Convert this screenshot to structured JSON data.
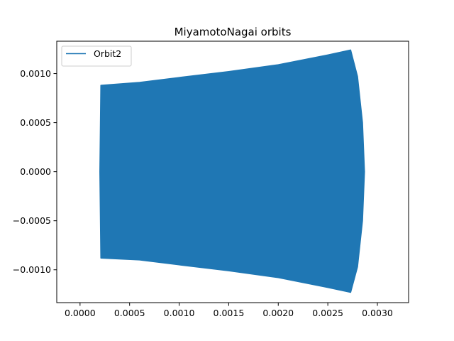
{
  "chart_data": {
    "type": "area",
    "title": "MiyamotoNagai orbits",
    "xlabel": "",
    "ylabel": "",
    "xlim": [
      -0.000235,
      0.003315
    ],
    "ylim": [
      -0.001335,
      0.00133
    ],
    "xticks": [
      {
        "value": 0.0,
        "label": "0.0000"
      },
      {
        "value": 0.0005,
        "label": "0.0005"
      },
      {
        "value": 0.001,
        "label": "0.0010"
      },
      {
        "value": 0.0015,
        "label": "0.0015"
      },
      {
        "value": 0.002,
        "label": "0.0020"
      },
      {
        "value": 0.0025,
        "label": "0.0025"
      },
      {
        "value": 0.003,
        "label": "0.0030"
      }
    ],
    "yticks": [
      {
        "value": -0.001,
        "label": "−0.0010"
      },
      {
        "value": -0.0005,
        "label": "−0.0005"
      },
      {
        "value": 0.0,
        "label": "0.0000"
      },
      {
        "value": 0.0005,
        "label": "0.0005"
      },
      {
        "value": 0.001,
        "label": "0.0010"
      }
    ],
    "grid": false,
    "legend_position": "upper left",
    "series": [
      {
        "name": "Orbit2",
        "color": "#1f77b4",
        "outline": [
          [
            0.00021,
            0.00088
          ],
          [
            0.0006,
            0.00091
          ],
          [
            0.001,
            0.00096
          ],
          [
            0.0015,
            0.00102
          ],
          [
            0.002,
            0.00109
          ],
          [
            0.0025,
            0.00119
          ],
          [
            0.00273,
            0.00124
          ],
          [
            0.0028,
            0.00097
          ],
          [
            0.00285,
            0.0005
          ],
          [
            0.00287,
            0.0
          ],
          [
            0.00285,
            -0.0005
          ],
          [
            0.0028,
            -0.00097
          ],
          [
            0.00273,
            -0.00123
          ],
          [
            0.0025,
            -0.00118
          ],
          [
            0.002,
            -0.00108
          ],
          [
            0.0015,
            -0.00101
          ],
          [
            0.001,
            -0.00095
          ],
          [
            0.0006,
            -0.0009
          ],
          [
            0.00021,
            -0.00088
          ],
          [
            0.0002,
            0.0
          ]
        ]
      }
    ]
  }
}
